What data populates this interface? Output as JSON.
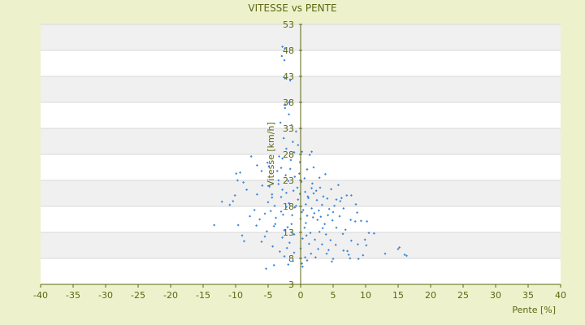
{
  "chart_data": {
    "type": "scatter",
    "title": "VITESSE vs PENTE",
    "xlabel": "Pente [%]",
    "ylabel": "Vitesse [km/h]",
    "xlim": [
      -40,
      40
    ],
    "ylim": [
      3,
      53
    ],
    "xticks": [
      -40,
      -35,
      -30,
      -25,
      -20,
      -15,
      -10,
      -5,
      0,
      5,
      10,
      15,
      20,
      25,
      30,
      35,
      40
    ],
    "yticks": [
      3,
      8,
      13,
      18,
      23,
      28,
      33,
      38,
      43,
      48,
      53
    ],
    "grid": true,
    "series": [
      {
        "points": [
          [
            -2.8,
            48.7
          ],
          [
            -2.4,
            48.4
          ],
          [
            -2.9,
            46.9
          ],
          [
            -2.5,
            46.1
          ],
          [
            -2.4,
            42.6
          ],
          [
            -1.6,
            42.2
          ],
          [
            -1.8,
            38.0
          ],
          [
            -2.4,
            37.6
          ],
          [
            -2.4,
            36.9
          ],
          [
            -1.8,
            35.7
          ],
          [
            -3.1,
            34.1
          ],
          [
            -1.4,
            33.6
          ],
          [
            -0.7,
            32.4
          ],
          [
            -2.6,
            31.1
          ],
          [
            -1.2,
            30.4
          ],
          [
            -0.4,
            29.8
          ],
          [
            -2.2,
            29.1
          ],
          [
            -1.0,
            28.4
          ],
          [
            0.2,
            28.5
          ],
          [
            1.7,
            28.5
          ],
          [
            1.4,
            27.9
          ],
          [
            -7.6,
            27.6
          ],
          [
            -3.3,
            27.6
          ],
          [
            -2.8,
            27.2
          ],
          [
            -1.5,
            26.9
          ],
          [
            -0.1,
            26.5
          ],
          [
            -5.1,
            26.4
          ],
          [
            -6.7,
            25.9
          ],
          [
            -4.9,
            25.7
          ],
          [
            -3.0,
            25.4
          ],
          [
            2.0,
            25.5
          ],
          [
            1.0,
            25.1
          ],
          [
            -6.0,
            24.8
          ],
          [
            -9.3,
            24.5
          ],
          [
            -9.9,
            24.3
          ],
          [
            3.8,
            24.2
          ],
          [
            -2.3,
            24.0
          ],
          [
            -0.9,
            23.7
          ],
          [
            0.6,
            23.4
          ],
          [
            2.9,
            23.5
          ],
          [
            -9.7,
            23.0
          ],
          [
            -1.9,
            22.9
          ],
          [
            0.1,
            22.7
          ],
          [
            -3.4,
            22.3
          ],
          [
            -5.9,
            22.0
          ],
          [
            -4.8,
            21.8
          ],
          [
            3.0,
            21.6
          ],
          [
            1.7,
            21.5
          ],
          [
            -2.8,
            21.2
          ],
          [
            -1.1,
            21.0
          ],
          [
            0.7,
            20.8
          ],
          [
            2.0,
            20.5
          ],
          [
            -6.7,
            20.3
          ],
          [
            -4.4,
            20.3
          ],
          [
            -10.1,
            20.1
          ],
          [
            -3.0,
            19.8
          ],
          [
            7.1,
            20.1
          ],
          [
            7.8,
            20.1
          ],
          [
            1.2,
            19.6
          ],
          [
            4.1,
            19.5
          ],
          [
            -0.4,
            19.3
          ],
          [
            2.5,
            19.2
          ],
          [
            5.5,
            19.3
          ],
          [
            6.1,
            19.0
          ],
          [
            -12.1,
            18.9
          ],
          [
            -5.0,
            18.8
          ],
          [
            -1.8,
            18.6
          ],
          [
            0.8,
            18.4
          ],
          [
            3.3,
            18.3
          ],
          [
            8.5,
            18.4
          ],
          [
            -10.9,
            18.3
          ],
          [
            -4.0,
            18.1
          ],
          [
            -2.2,
            17.9
          ],
          [
            -0.9,
            17.8
          ],
          [
            1.7,
            17.6
          ],
          [
            4.4,
            17.5
          ],
          [
            6.6,
            17.6
          ],
          [
            -7.1,
            17.3
          ],
          [
            -3.0,
            17.0
          ],
          [
            0.2,
            16.9
          ],
          [
            2.1,
            16.7
          ],
          [
            5.0,
            16.9
          ],
          [
            8.7,
            16.8
          ],
          [
            -5.5,
            16.6
          ],
          [
            -1.3,
            16.3
          ],
          [
            1.0,
            16.2
          ],
          [
            3.1,
            16.0
          ],
          [
            6.0,
            16.1
          ],
          [
            -3.8,
            15.8
          ],
          [
            0.0,
            15.6
          ],
          [
            2.6,
            15.4
          ],
          [
            4.9,
            15.3
          ],
          [
            7.7,
            15.4
          ],
          [
            9.3,
            15.2
          ],
          [
            10.2,
            15.1
          ],
          [
            8.4,
            15.1
          ],
          [
            -13.3,
            14.4
          ],
          [
            -9.6,
            14.4
          ],
          [
            -6.8,
            14.3
          ],
          [
            -4.1,
            14.2
          ],
          [
            -2.0,
            14.0
          ],
          [
            0.6,
            13.9
          ],
          [
            3.4,
            13.8
          ],
          [
            5.5,
            13.9
          ],
          [
            6.9,
            13.5
          ],
          [
            -5.2,
            13.2
          ],
          [
            -1.4,
            13.0
          ],
          [
            1.5,
            12.9
          ],
          [
            3.9,
            12.6
          ],
          [
            6.5,
            12.7
          ],
          [
            10.5,
            12.9
          ],
          [
            11.3,
            12.8
          ],
          [
            -9.0,
            12.4
          ],
          [
            -5.5,
            12.2
          ],
          [
            -2.8,
            12.0
          ],
          [
            0.3,
            11.8
          ],
          [
            2.2,
            11.6
          ],
          [
            4.6,
            11.5
          ],
          [
            7.8,
            11.4
          ],
          [
            9.9,
            11.6
          ],
          [
            -8.7,
            11.3
          ],
          [
            -6.0,
            11.2
          ],
          [
            -1.7,
            11.0
          ],
          [
            1.3,
            10.8
          ],
          [
            3.3,
            10.7
          ],
          [
            5.4,
            10.6
          ],
          [
            8.8,
            10.7
          ],
          [
            10.1,
            10.5
          ],
          [
            -4.3,
            10.3
          ],
          [
            -2.1,
            10.0
          ],
          [
            0.0,
            9.9
          ],
          [
            2.7,
            9.8
          ],
          [
            4.3,
            9.6
          ],
          [
            6.6,
            9.5
          ],
          [
            7.2,
            9.4
          ],
          [
            15.2,
            10.1
          ],
          [
            15.0,
            9.8
          ],
          [
            -3.2,
            9.3
          ],
          [
            -1.0,
            9.1
          ],
          [
            1.6,
            8.9
          ],
          [
            4.0,
            8.9
          ],
          [
            7.4,
            8.7
          ],
          [
            9.6,
            8.6
          ],
          [
            13.0,
            8.9
          ],
          [
            16.0,
            8.7
          ],
          [
            16.3,
            8.5
          ],
          [
            -2.5,
            8.4
          ],
          [
            0.7,
            8.2
          ],
          [
            2.3,
            8.2
          ],
          [
            5.0,
            7.9
          ],
          [
            7.6,
            8.0
          ],
          [
            8.9,
            7.9
          ],
          [
            -1.2,
            7.5
          ],
          [
            1.0,
            7.6
          ],
          [
            4.8,
            7.4
          ],
          [
            0.2,
            7.0
          ],
          [
            -4.1,
            6.7
          ],
          [
            -5.3,
            6.0
          ],
          [
            0.3,
            6.4
          ],
          [
            -1.9,
            6.8
          ],
          [
            -2.2,
            20.6
          ],
          [
            -0.5,
            21.6
          ],
          [
            1.8,
            22.4
          ],
          [
            -3.6,
            24.8
          ],
          [
            -4.4,
            19.7
          ],
          [
            -2.7,
            16.4
          ],
          [
            -1.4,
            14.6
          ],
          [
            0.8,
            14.8
          ],
          [
            1.9,
            15.9
          ],
          [
            2.8,
            17.2
          ],
          [
            3.5,
            19.9
          ],
          [
            4.7,
            21.3
          ],
          [
            5.8,
            22.1
          ],
          [
            -0.2,
            24.3
          ],
          [
            -1.6,
            25.2
          ],
          [
            -3.4,
            23.0
          ],
          [
            -0.7,
            18.1
          ],
          [
            0.4,
            17.3
          ],
          [
            1.1,
            19.9
          ],
          [
            2.4,
            21.0
          ],
          [
            -1.0,
            12.6
          ],
          [
            0.9,
            12.4
          ],
          [
            2.9,
            13.1
          ],
          [
            3.7,
            14.6
          ],
          [
            4.2,
            16.3
          ],
          [
            5.2,
            18.1
          ],
          [
            6.3,
            19.6
          ],
          [
            -6.3,
            15.5
          ],
          [
            -7.8,
            16.1
          ],
          [
            -8.3,
            21.2
          ],
          [
            -8.8,
            22.6
          ],
          [
            -10.4,
            19.0
          ],
          [
            -2.5,
            13.4
          ],
          [
            -3.9,
            14.6
          ],
          [
            -4.6,
            17.1
          ],
          [
            -0.1,
            20.4
          ]
        ]
      }
    ],
    "point_color": "#3f86d6",
    "axis_color": "#5b6610",
    "plot_bg_light": "#ffffff",
    "plot_bg_dark": "#f0f0f0",
    "page_bg": "#eef2cc"
  }
}
